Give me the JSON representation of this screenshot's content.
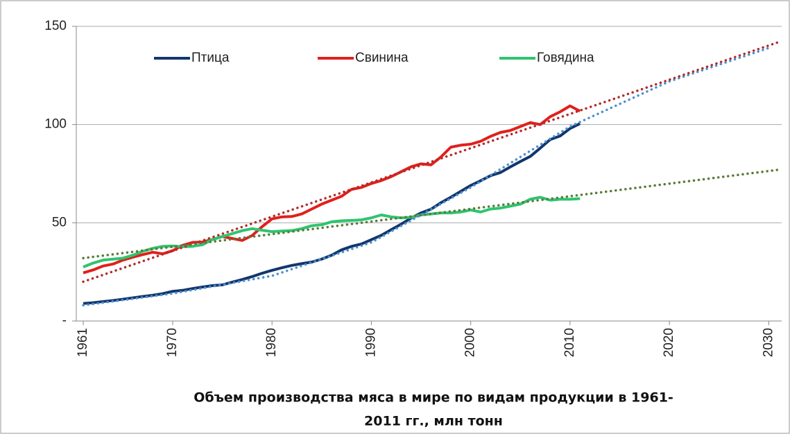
{
  "chart_data": {
    "type": "line",
    "title": [
      "Объем производства мяса в мире по видам продукции в 1961-",
      "2011 гг., млн тонн"
    ],
    "x": [
      1961,
      1962,
      1963,
      1964,
      1965,
      1966,
      1967,
      1968,
      1969,
      1970,
      1971,
      1972,
      1973,
      1974,
      1975,
      1976,
      1977,
      1978,
      1979,
      1980,
      1981,
      1982,
      1983,
      1984,
      1985,
      1986,
      1987,
      1988,
      1989,
      1990,
      1991,
      1992,
      1993,
      1994,
      1995,
      1996,
      1997,
      1998,
      1999,
      2000,
      2001,
      2002,
      2003,
      2004,
      2005,
      2006,
      2007,
      2008,
      2009,
      2010,
      2011
    ],
    "series": [
      {
        "name": "Птица",
        "color": "#13366b",
        "values": [
          8.9,
          9.3,
          9.9,
          10.4,
          11.1,
          11.8,
          12.5,
          13.1,
          13.9,
          15.1,
          15.6,
          16.5,
          17.3,
          18.0,
          18.4,
          19.8,
          21.1,
          22.6,
          24.3,
          25.8,
          27.1,
          28.3,
          29.2,
          30.0,
          31.5,
          33.5,
          36.2,
          38.0,
          39.2,
          41.4,
          43.6,
          46.5,
          49.3,
          52.4,
          55.0,
          56.9,
          60.2,
          63.0,
          66.0,
          69.0,
          71.4,
          74.0,
          75.6,
          78.5,
          81.2,
          83.8,
          88.0,
          92.4,
          94.2,
          98.0,
          100.5
        ],
        "trend": {
          "color": "#4a90d0",
          "x": [
            1961,
            1970,
            1980,
            1990,
            2000,
            2010,
            2020,
            2030
          ],
          "values": [
            8,
            14,
            23,
            40,
            68,
            99,
            122,
            139
          ]
        }
      },
      {
        "name": "Свинина",
        "color": "#e0201b",
        "values": [
          24.5,
          26.0,
          28.0,
          29.0,
          31.0,
          32.5,
          33.8,
          35.0,
          34.2,
          35.8,
          38.5,
          40.0,
          40.2,
          41.5,
          43.0,
          42.0,
          41.0,
          43.5,
          48.0,
          52.0,
          53.0,
          53.2,
          54.5,
          57.0,
          59.5,
          61.5,
          63.5,
          67.0,
          68.0,
          70.0,
          71.5,
          73.5,
          76.0,
          78.5,
          80.0,
          79.5,
          83.5,
          88.5,
          89.5,
          90.0,
          91.5,
          94.0,
          96.0,
          97.0,
          99.0,
          101.0,
          100.0,
          104.0,
          106.5,
          109.5,
          106.8
        ],
        "trend": {
          "color": "#b22a2a",
          "x": [
            1961,
            2031
          ],
          "values": [
            20,
            142
          ]
        }
      },
      {
        "name": "Говядина",
        "color": "#2ec470",
        "values": [
          27.5,
          29.5,
          31.0,
          31.5,
          32.0,
          33.5,
          35.5,
          37.0,
          38.0,
          38.2,
          37.8,
          38.0,
          38.8,
          41.5,
          43.0,
          44.5,
          46.0,
          47.0,
          46.2,
          45.5,
          45.8,
          46.0,
          47.0,
          48.5,
          49.0,
          50.5,
          51.0,
          51.2,
          51.5,
          52.5,
          54.0,
          53.0,
          52.5,
          52.8,
          54.0,
          54.5,
          55.0,
          55.0,
          55.5,
          56.5,
          55.5,
          57.0,
          57.5,
          58.5,
          59.5,
          62.0,
          63.0,
          61.5,
          62.0,
          62.0,
          62.3
        ],
        "trend": {
          "color": "#5a7a3a",
          "x": [
            1961,
            2031
          ],
          "values": [
            32,
            77
          ]
        }
      }
    ],
    "xlim": [
      1960.3,
      2031.3
    ],
    "xticks": [
      1961,
      1970,
      1980,
      1990,
      2000,
      2010,
      2020,
      2030
    ],
    "ylim": [
      0,
      150
    ],
    "yticks": [
      {
        "value": 0,
        "label": "-"
      },
      50,
      100,
      150
    ],
    "grid": true,
    "legend": "top"
  }
}
